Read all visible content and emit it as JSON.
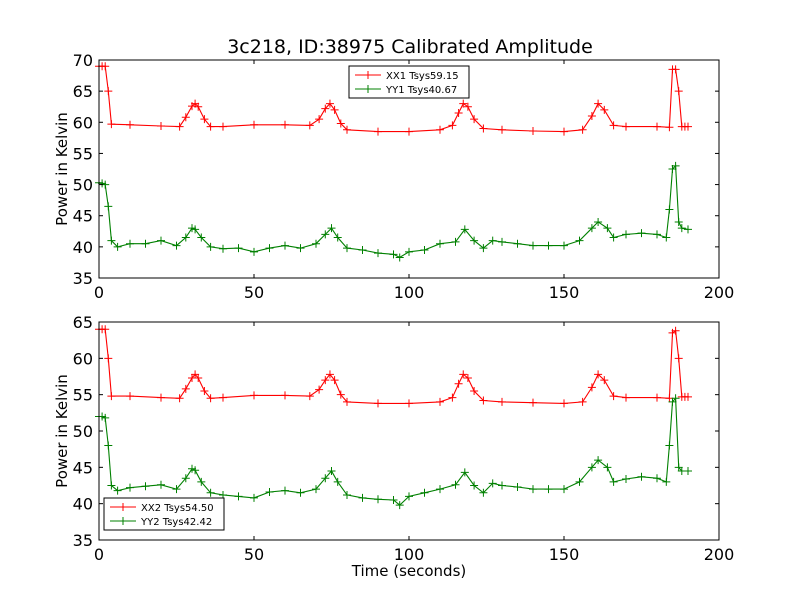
{
  "figure_title": "3c218, ID:38975 Calibrated Amplitude",
  "colors": {
    "xx": "#ff0000",
    "yy": "#008000",
    "frame": "#000000",
    "background": "#ffffff"
  },
  "chart_data": [
    {
      "type": "line",
      "title": "3c218, ID:38975 Calibrated Amplitude",
      "xlabel": "",
      "ylabel": "Power in Kelvin",
      "xlim": [
        0,
        200
      ],
      "ylim": [
        35,
        70
      ],
      "xticks": [
        "0",
        "50",
        "100",
        "150",
        "200"
      ],
      "yticks": [
        "35",
        "40",
        "45",
        "50",
        "55",
        "60",
        "65",
        "70"
      ],
      "grid": false,
      "legend_position": "upper-center",
      "marker": "plus",
      "series": [
        {
          "name": "XX1 Tsys59.15",
          "color": "#ff0000",
          "x": [
            0,
            1,
            2,
            3,
            4,
            10,
            20,
            26,
            28,
            30,
            31,
            32,
            34,
            36,
            40,
            50,
            60,
            68,
            71,
            73,
            74.5,
            76,
            78,
            80,
            90,
            100,
            110,
            114,
            116,
            117.5,
            119,
            121,
            124,
            130,
            140,
            150,
            156,
            159,
            161,
            163,
            166,
            170,
            180,
            184,
            185,
            186,
            187,
            188,
            189,
            190
          ],
          "y": [
            69.0,
            69.0,
            69.0,
            65.0,
            59.7,
            59.6,
            59.4,
            59.3,
            60.8,
            62.6,
            63.0,
            62.5,
            60.5,
            59.3,
            59.3,
            59.6,
            59.6,
            59.5,
            60.5,
            62.2,
            63.0,
            62.0,
            59.8,
            58.8,
            58.5,
            58.5,
            58.8,
            59.5,
            61.5,
            63.0,
            62.5,
            60.5,
            59.0,
            58.8,
            58.6,
            58.5,
            58.8,
            61.0,
            63.0,
            62.0,
            59.5,
            59.3,
            59.3,
            59.2,
            68.5,
            68.5,
            65.0,
            59.3,
            59.3,
            59.3
          ]
        },
        {
          "name": "YY1 Tsys40.67",
          "color": "#008000",
          "x": [
            0,
            1,
            2,
            3,
            4,
            6,
            10,
            15,
            20,
            25,
            28,
            30,
            31,
            33,
            36,
            40,
            45,
            50,
            55,
            60,
            65,
            70,
            73,
            75,
            77,
            80,
            85,
            90,
            95,
            97,
            100,
            105,
            110,
            115,
            118,
            121,
            124,
            127,
            130,
            135,
            140,
            145,
            150,
            155,
            159,
            161,
            164,
            166,
            170,
            175,
            180,
            183,
            184,
            185,
            186,
            187,
            188,
            190
          ],
          "y": [
            50.3,
            50.2,
            50.0,
            46.5,
            41.0,
            40.0,
            40.5,
            40.5,
            41.0,
            40.2,
            41.5,
            43.0,
            42.8,
            41.5,
            40.0,
            39.7,
            39.8,
            39.2,
            39.8,
            40.2,
            39.8,
            40.5,
            42.0,
            43.0,
            41.5,
            39.8,
            39.5,
            39.0,
            38.8,
            38.3,
            39.2,
            39.5,
            40.5,
            40.8,
            42.8,
            41.0,
            39.8,
            41.0,
            40.8,
            40.5,
            40.2,
            40.2,
            40.2,
            41.0,
            43.0,
            44.0,
            43.0,
            41.5,
            42.0,
            42.2,
            42.0,
            41.5,
            46.0,
            52.5,
            53.0,
            44.0,
            43.0,
            42.8
          ]
        }
      ]
    },
    {
      "type": "line",
      "title": "",
      "xlabel": "Time (seconds)",
      "ylabel": "Power in Kelvin",
      "xlim": [
        0,
        200
      ],
      "ylim": [
        35,
        65
      ],
      "xticks": [
        "0",
        "50",
        "100",
        "150",
        "200"
      ],
      "yticks": [
        "35",
        "40",
        "45",
        "50",
        "55",
        "60",
        "65"
      ],
      "grid": false,
      "legend_position": "lower-left",
      "marker": "plus",
      "series": [
        {
          "name": "XX2 Tsys54.50",
          "color": "#ff0000",
          "x": [
            0,
            1,
            2,
            3,
            4,
            10,
            20,
            26,
            28,
            30,
            31,
            32,
            34,
            36,
            40,
            50,
            60,
            68,
            71,
            73,
            74.5,
            76,
            78,
            80,
            90,
            100,
            110,
            114,
            116,
            117.5,
            119,
            121,
            124,
            130,
            140,
            150,
            156,
            159,
            161,
            163,
            166,
            170,
            180,
            184,
            185,
            186,
            187,
            188,
            189,
            190
          ],
          "y": [
            64.0,
            64.0,
            64.0,
            60.0,
            54.8,
            54.8,
            54.6,
            54.5,
            55.8,
            57.3,
            57.8,
            57.3,
            55.5,
            54.5,
            54.6,
            54.9,
            54.9,
            54.8,
            55.7,
            57.0,
            57.8,
            57.0,
            55.0,
            54.0,
            53.8,
            53.8,
            54.0,
            54.6,
            56.5,
            57.8,
            57.3,
            55.5,
            54.2,
            54.0,
            53.9,
            53.8,
            54.0,
            56.0,
            57.8,
            57.0,
            54.8,
            54.6,
            54.6,
            54.5,
            63.5,
            63.8,
            60.0,
            54.7,
            54.7,
            54.7
          ]
        },
        {
          "name": "YY2 Tsys42.42",
          "color": "#008000",
          "x": [
            0,
            1,
            2,
            3,
            4,
            6,
            10,
            15,
            20,
            25,
            28,
            30,
            31,
            33,
            36,
            40,
            45,
            50,
            55,
            60,
            65,
            70,
            73,
            75,
            77,
            80,
            85,
            90,
            95,
            97,
            100,
            105,
            110,
            115,
            118,
            121,
            124,
            127,
            130,
            135,
            140,
            145,
            150,
            155,
            159,
            161,
            164,
            166,
            170,
            175,
            180,
            183,
            184,
            185,
            186,
            187,
            188,
            190
          ],
          "y": [
            52.0,
            52.0,
            51.8,
            48.0,
            42.5,
            41.8,
            42.2,
            42.4,
            42.6,
            42.0,
            43.5,
            44.8,
            44.6,
            43.0,
            41.5,
            41.2,
            41.0,
            40.8,
            41.6,
            41.8,
            41.5,
            42.0,
            43.5,
            44.5,
            43.0,
            41.2,
            40.8,
            40.6,
            40.5,
            39.8,
            41.0,
            41.5,
            42.0,
            42.6,
            44.3,
            42.5,
            41.5,
            42.8,
            42.5,
            42.3,
            42.0,
            42.0,
            42.0,
            43.0,
            45.0,
            46.0,
            45.0,
            43.0,
            43.4,
            43.7,
            43.5,
            43.0,
            48.0,
            54.0,
            54.5,
            45.0,
            44.5,
            44.5
          ]
        }
      ]
    }
  ]
}
